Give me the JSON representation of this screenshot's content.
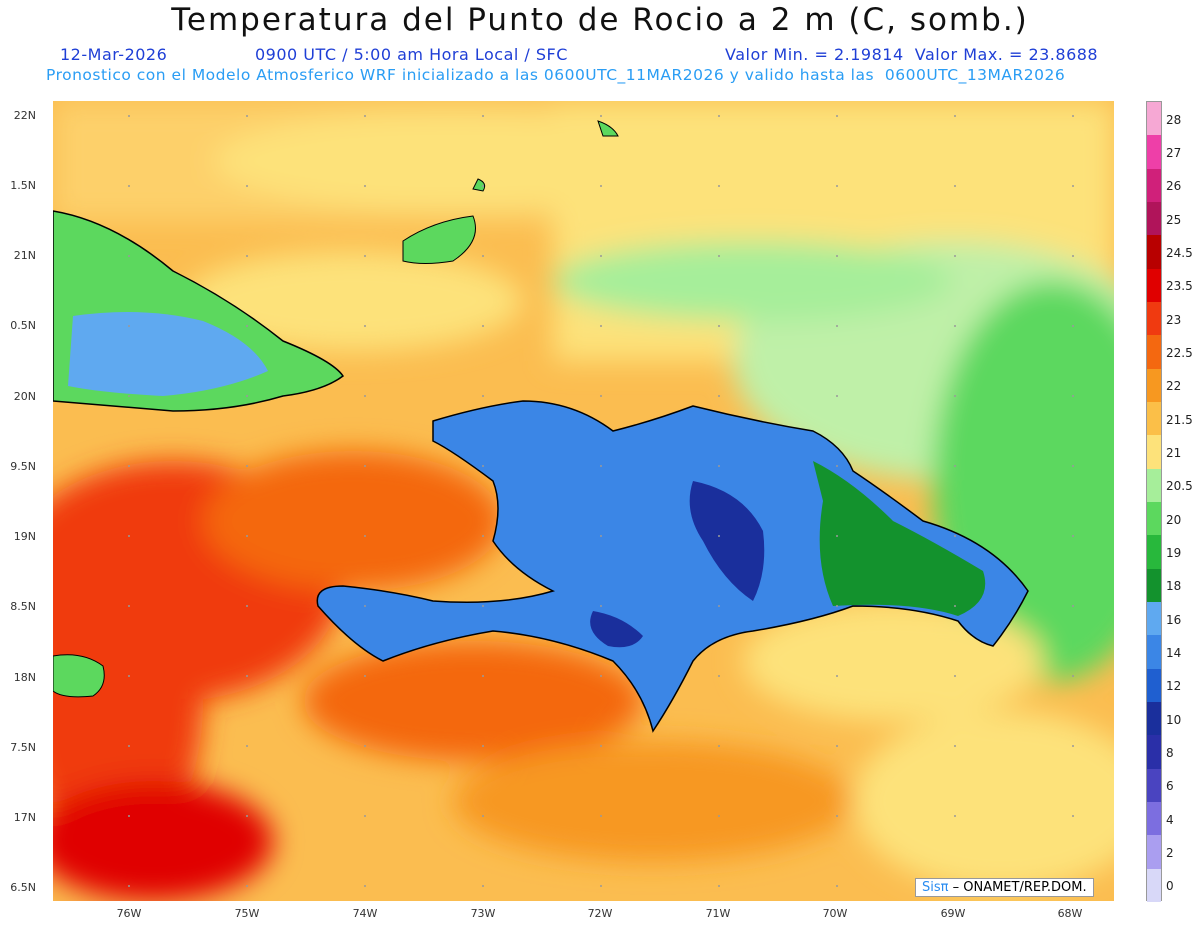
{
  "title": "Temperatura del Punto de Rocio a 2 m (C, somb.)",
  "header": {
    "date": "12-Mar-2026",
    "time": "0900 UTC / 5:00 am Hora Local / SFC",
    "minmax": "Valor Min. = 2.19814  Valor Max. = 23.8688",
    "model": "Pronostico con el Modelo Atmosferico WRF inicializado a las 0600UTC_11MAR2026 y valido hasta las  0600UTC_13MAR2026"
  },
  "y_axis": [
    "22N",
    "1.5N",
    "21N",
    "0.5N",
    "20N",
    "9.5N",
    "19N",
    "8.5N",
    "18N",
    "7.5N",
    "17N",
    "6.5N"
  ],
  "x_axis": [
    "76W",
    "75W",
    "74W",
    "73W",
    "72W",
    "71W",
    "70W",
    "69W",
    "68W"
  ],
  "colorbar": {
    "labels": [
      "28",
      "27",
      "26",
      "25",
      "24.5",
      "23.5",
      "23",
      "22.5",
      "22",
      "21.5",
      "21",
      "20.5",
      "20",
      "19",
      "18",
      "16",
      "14",
      "12",
      "10",
      "8",
      "6",
      "4",
      "2",
      "0"
    ],
    "colors": [
      "#f6a8d4",
      "#ee3fa8",
      "#d0207a",
      "#b0145a",
      "#b80000",
      "#e00000",
      "#f03a10",
      "#f46810",
      "#f79820",
      "#fbbf48",
      "#fde27a",
      "#a6ee9a",
      "#5cd85e",
      "#28b83c",
      "#13922d",
      "#5fa9f0",
      "#3b86e6",
      "#1f5fd0",
      "#1a2f9c",
      "#2a2fa8",
      "#4a44c0",
      "#7c6ee0",
      "#aa9ef0",
      "#d8d8f8"
    ]
  },
  "credit": {
    "sis": "Sisπ",
    "rest": " – ONAMET/REP.DOM."
  }
}
